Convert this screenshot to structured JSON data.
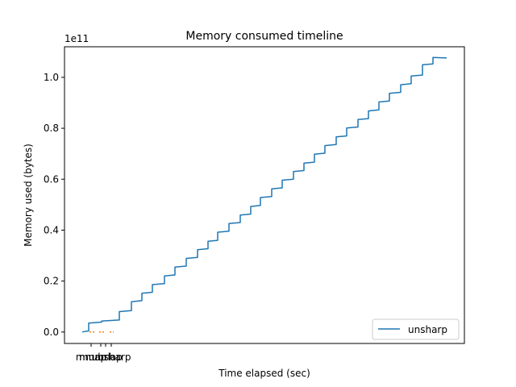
{
  "chart_data": {
    "type": "line",
    "title": "Memory consumed timeline",
    "xlabel": "Time elapsed (sec)",
    "ylabel": "Memory used (bytes)",
    "y_offset_label": "1e11",
    "ylim": [
      -4500000000.0,
      112000000000.0
    ],
    "y_ticks": [
      0,
      20000000000.0,
      40000000000.0,
      60000000000.0,
      80000000000.0,
      100000000000.0
    ],
    "y_tick_labels": [
      "0.0",
      "0.2",
      "0.4",
      "0.6",
      "0.8",
      "1.0"
    ],
    "x_tick_labels": [
      "mmap",
      "munmap",
      "brk",
      "unsharp"
    ],
    "legend": {
      "entries": [
        "unsharp"
      ],
      "placement": "lower-right"
    },
    "series": [
      {
        "name": "unsharp",
        "color": "#1f77b4",
        "style": "solid-step",
        "step_points_bytes": [
          0,
          3500000000.0,
          4300000000.0,
          8000000000.0,
          11900000000.0,
          15200000000.0,
          18600000000.0,
          22000000000.0,
          25500000000.0,
          28900000000.0,
          32300000000.0,
          35600000000.0,
          39200000000.0,
          42600000000.0,
          45900000000.0,
          49300000000.0,
          52800000000.0,
          56200000000.0,
          59600000000.0,
          63000000000.0,
          66300000000.0,
          69800000000.0,
          73200000000.0,
          76600000000.0,
          80100000000.0,
          83400000000.0,
          86800000000.0,
          90300000000.0,
          93700000000.0,
          97100000000.0,
          100500000000.0,
          104900000000.0,
          107800000000.0
        ]
      },
      {
        "name": "",
        "color": "#ff7f0e",
        "style": "dashed-dots",
        "values_bytes": [
          0,
          0,
          0,
          0
        ]
      }
    ]
  }
}
